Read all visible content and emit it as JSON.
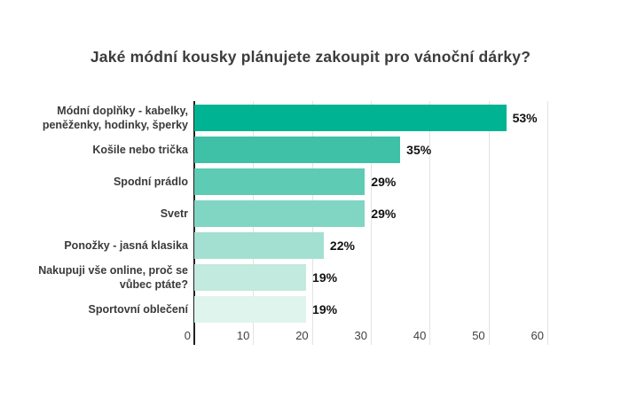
{
  "page": {
    "background_color": "#ffffff"
  },
  "chart_data": {
    "type": "bar",
    "orientation": "horizontal",
    "title": "Jaké módní kousky plánujete zakoupit pro vánoční dárky?",
    "categories": [
      "Módní doplňky - kabelky, peněženky, hodinky, šperky",
      "Košile nebo trička",
      "Spodní prádlo",
      "Svetr",
      "Ponožky - jasná klasika",
      "Nakupuji vše online, proč se vůbec ptáte?",
      "Sportovní oblečení"
    ],
    "values": [
      53,
      35,
      29,
      29,
      22,
      19,
      19
    ],
    "value_labels": [
      "53%",
      "35%",
      "29%",
      "29%",
      "22%",
      "19%",
      "19%"
    ],
    "bar_colors": [
      "#00b493",
      "#3ec1a7",
      "#5ecbb4",
      "#81d6c3",
      "#a3e0d1",
      "#c2eadf",
      "#dff4ed"
    ],
    "x_ticks": [
      0,
      10,
      20,
      30,
      40,
      50,
      60
    ],
    "xlim": [
      0,
      60
    ],
    "xlabel": "",
    "ylabel": "",
    "grid": true,
    "legend": false,
    "gridline_color": "#e3e3e3",
    "axis_line_color": "#1f1f1f",
    "title_color": "#3c3c3c",
    "category_label_color": "#3a3a3a",
    "value_label_color": "#111111",
    "tick_label_color": "#3f3f3f"
  }
}
